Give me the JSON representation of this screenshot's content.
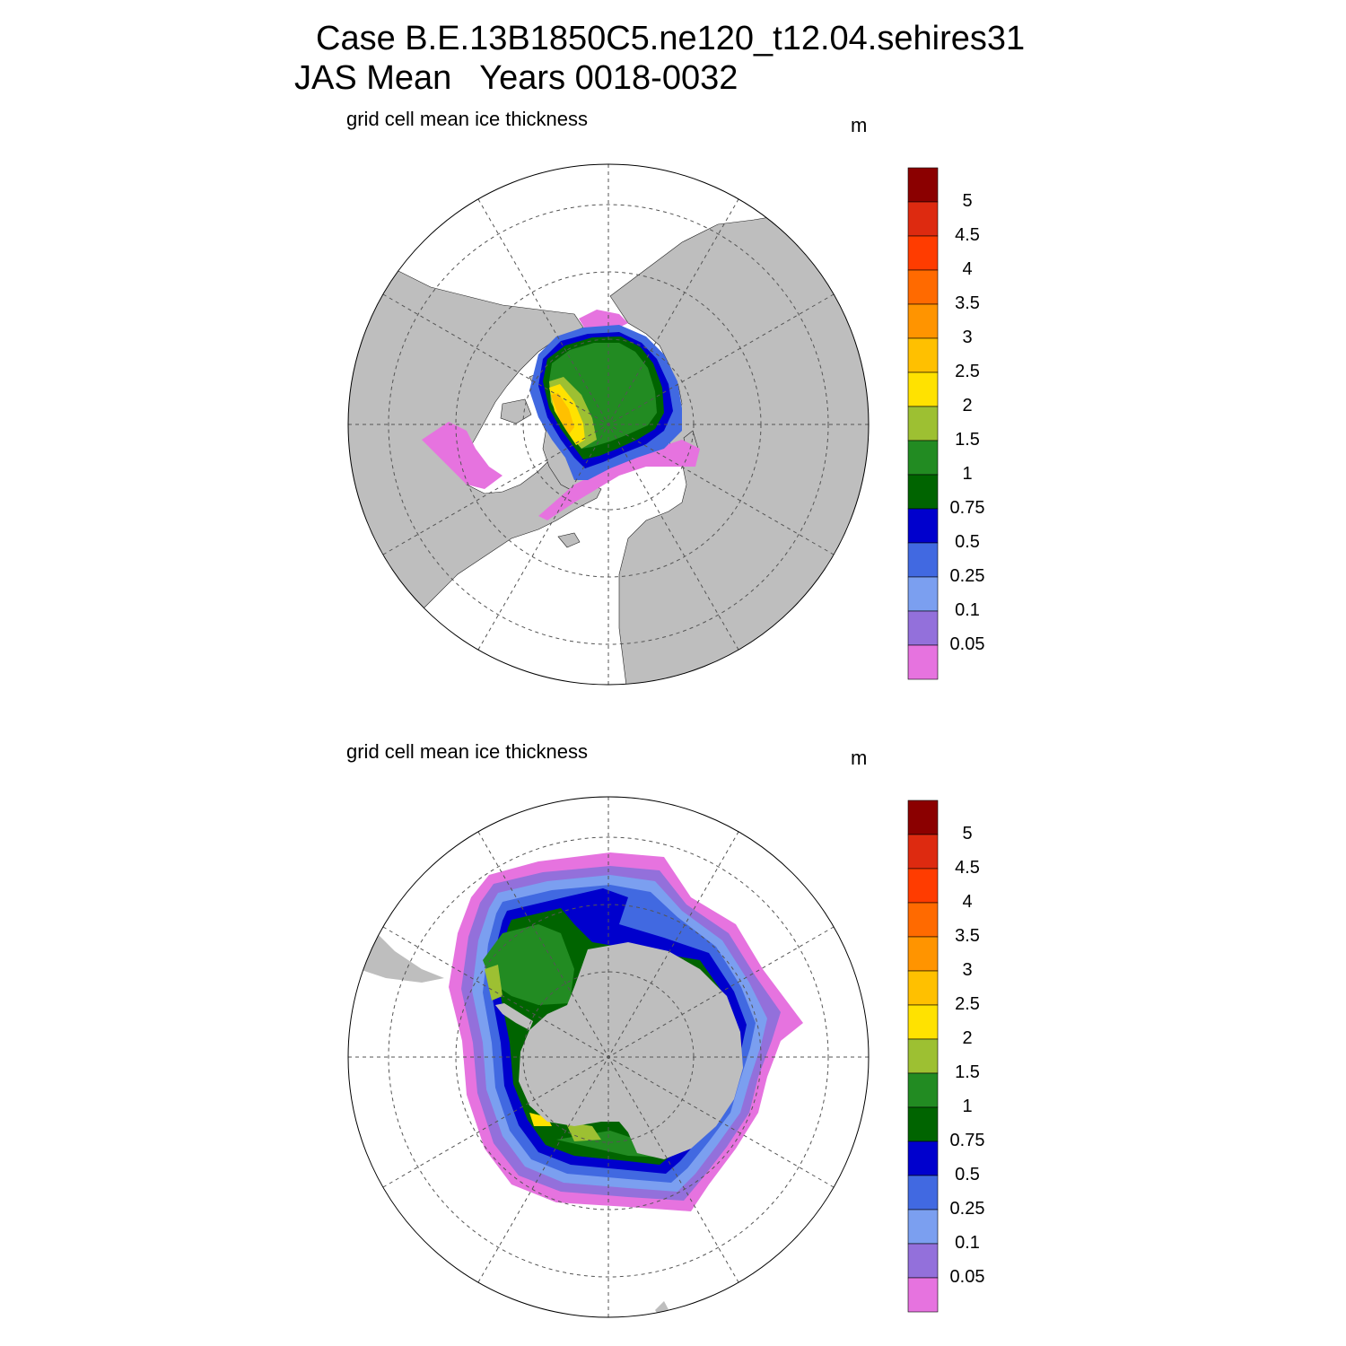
{
  "title": {
    "line1": "Case B.E.13B1850C5.ne120_t12.04.sehires31",
    "line2": "JAS Mean   Years 0018-0032"
  },
  "panels": [
    {
      "hemisphere": "north",
      "variable_label": "grid cell mean ice thickness",
      "unit": "m"
    },
    {
      "hemisphere": "south",
      "variable_label": "grid cell mean ice thickness",
      "unit": "m"
    }
  ],
  "colorbar": {
    "labels": [
      "5",
      "4.5",
      "4",
      "3.5",
      "3",
      "2.5",
      "2",
      "1.5",
      "1",
      "0.75",
      "0.5",
      "0.25",
      "0.1",
      "0.05"
    ],
    "colors_top_to_bottom": [
      "#8b0000",
      "#dd2a10",
      "#ff3c00",
      "#ff6a00",
      "#ff9400",
      "#ffc000",
      "#ffe200",
      "#9dc032",
      "#228b22",
      "#006400",
      "#0000cd",
      "#4169e1",
      "#7b9ff0",
      "#9370db",
      "#e673df"
    ]
  },
  "colors": {
    "land": "#bebebe",
    "ocean": "#ffffff",
    "grid": "#555555"
  }
}
